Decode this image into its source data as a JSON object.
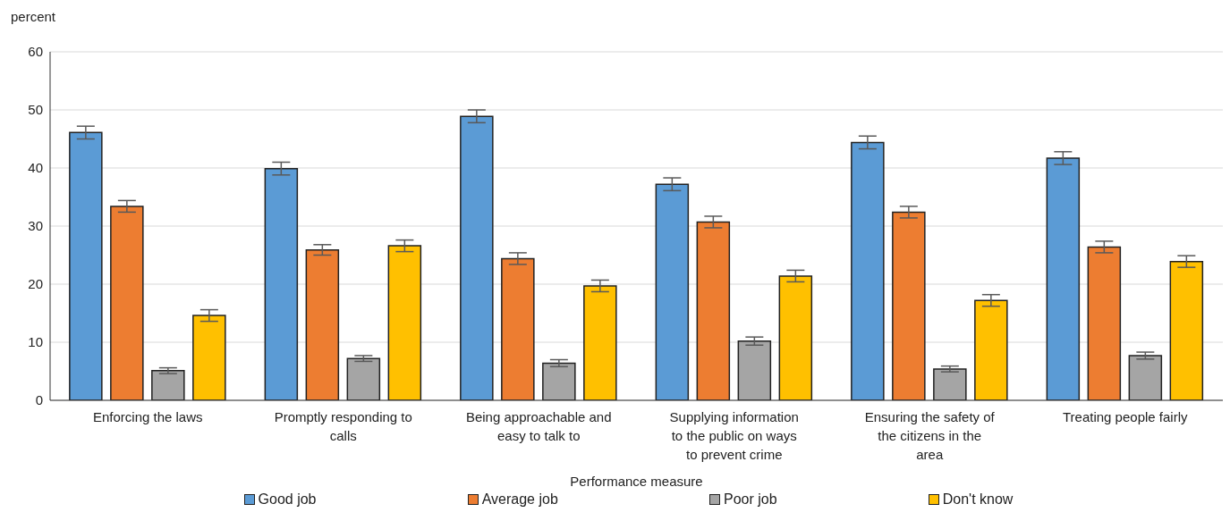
{
  "chart_data": {
    "type": "bar",
    "ylabel": "percent",
    "xlabel": "Performance measure",
    "categories": [
      "Enforcing the laws",
      "Promptly responding to calls",
      "Being approachable and easy to talk to",
      "Supplying information to the public on ways to prevent crime",
      "Ensuring the safety of the citizens in the area",
      "Treating people fairly"
    ],
    "series": [
      {
        "name": "Good job",
        "color": "#5b9bd5",
        "values": [
          46.1,
          39.9,
          48.9,
          37.2,
          44.4,
          41.7
        ],
        "errors": [
          1.1,
          1.1,
          1.1,
          1.1,
          1.1,
          1.1
        ]
      },
      {
        "name": "Average job",
        "color": "#ed7d31",
        "values": [
          33.4,
          25.9,
          24.4,
          30.7,
          32.4,
          26.4
        ],
        "errors": [
          1.0,
          0.9,
          1.0,
          1.0,
          1.0,
          1.0
        ]
      },
      {
        "name": "Poor job",
        "color": "#a5a5a5",
        "values": [
          5.1,
          7.2,
          6.4,
          10.2,
          5.4,
          7.7
        ],
        "errors": [
          0.5,
          0.5,
          0.6,
          0.7,
          0.5,
          0.6
        ]
      },
      {
        "name": "Don't know",
        "color": "#ffc000",
        "values": [
          14.6,
          26.6,
          19.7,
          21.4,
          17.2,
          23.9
        ],
        "errors": [
          1.0,
          1.0,
          1.0,
          1.0,
          1.0,
          1.0
        ]
      }
    ],
    "ylim": [
      0,
      60
    ],
    "yticks": [
      0,
      10,
      20,
      30,
      40,
      50,
      60
    ],
    "grid": "y",
    "legend": "bottom"
  }
}
